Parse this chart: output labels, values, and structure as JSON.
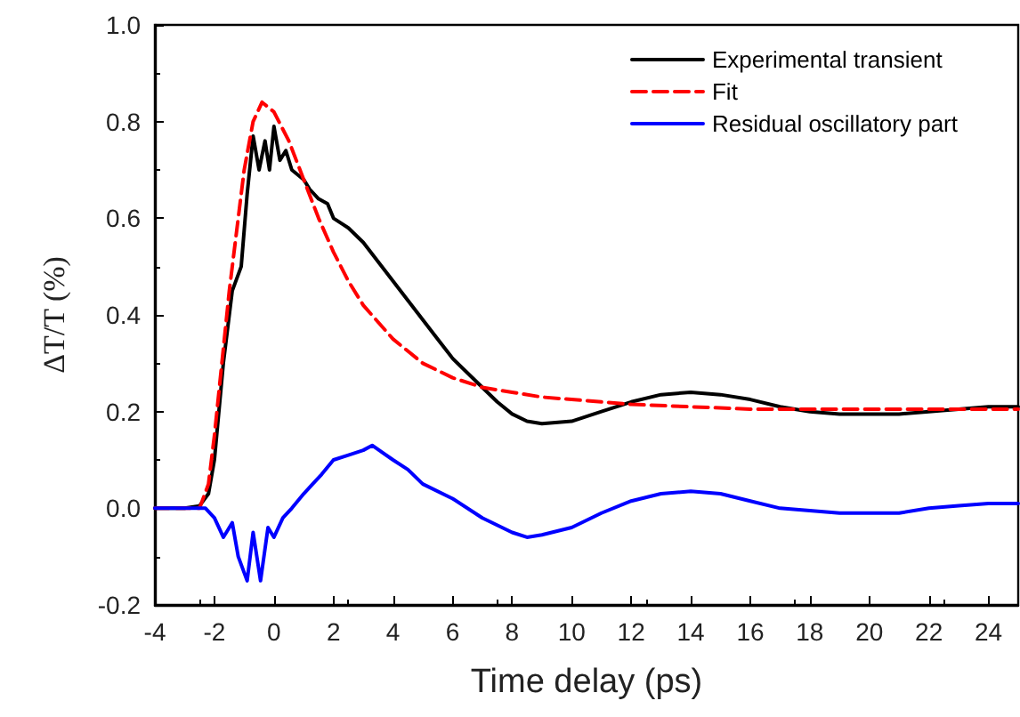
{
  "chart_data": {
    "type": "line",
    "xlabel": "Time delay (ps)",
    "ylabel": "ΔT/T (%)",
    "xlim": [
      -4,
      25
    ],
    "xticks": [
      -4,
      -2,
      0,
      2,
      4,
      6,
      8,
      10,
      12,
      14,
      16,
      18,
      20,
      22,
      24
    ],
    "ylim": [
      -0.2,
      1.0
    ],
    "yticks": [
      -0.2,
      {
        "value": 0,
        "label": "0.0"
      },
      0.2,
      0.4,
      0.6,
      0.8,
      {
        "value": 1,
        "label": "1.0"
      }
    ],
    "legend": "top right",
    "marker": "none",
    "series": [
      {
        "name": "Experimental transient",
        "color": "#000000",
        "line_style": "solid",
        "x": [
          -4,
          -3,
          -2.5,
          -2.2,
          -2,
          -1.7,
          -1.4,
          -1.1,
          -0.9,
          -0.7,
          -0.5,
          -0.3,
          -0.15,
          0,
          0.2,
          0.4,
          0.6,
          0.8,
          1,
          1.2,
          1.5,
          1.8,
          2,
          2.5,
          3,
          3.5,
          4,
          4.5,
          5,
          5.5,
          6,
          6.5,
          7,
          7.5,
          8,
          8.5,
          9,
          10,
          11,
          12,
          13,
          14,
          15,
          16,
          17,
          18,
          19,
          20,
          21,
          22,
          23,
          24,
          25
        ],
        "values": [
          0,
          0,
          0.005,
          0.03,
          0.1,
          0.3,
          0.45,
          0.5,
          0.65,
          0.77,
          0.7,
          0.76,
          0.7,
          0.79,
          0.72,
          0.74,
          0.7,
          0.69,
          0.68,
          0.66,
          0.64,
          0.63,
          0.6,
          0.58,
          0.55,
          0.51,
          0.47,
          0.43,
          0.39,
          0.35,
          0.31,
          0.28,
          0.25,
          0.22,
          0.195,
          0.18,
          0.175,
          0.18,
          0.2,
          0.22,
          0.235,
          0.24,
          0.235,
          0.225,
          0.21,
          0.2,
          0.195,
          0.195,
          0.195,
          0.2,
          0.205,
          0.21,
          0.21
        ]
      },
      {
        "name": "Fit",
        "color": "#ff0000",
        "line_style": "dashed",
        "x": [
          -4,
          -2.5,
          -2.2,
          -2,
          -1.5,
          -1,
          -0.7,
          -0.4,
          0,
          0.5,
          1,
          1.5,
          2,
          2.5,
          3,
          4,
          5,
          6,
          7,
          8,
          9,
          10,
          12,
          14,
          16,
          18,
          20,
          22,
          25
        ],
        "values": [
          0,
          0,
          0.05,
          0.15,
          0.45,
          0.7,
          0.8,
          0.84,
          0.82,
          0.76,
          0.68,
          0.6,
          0.53,
          0.47,
          0.42,
          0.35,
          0.3,
          0.27,
          0.25,
          0.24,
          0.23,
          0.225,
          0.215,
          0.21,
          0.205,
          0.205,
          0.205,
          0.205,
          0.205
        ]
      },
      {
        "name": "Residual oscillatory part",
        "color": "#0000ff",
        "line_style": "solid",
        "x": [
          -4,
          -2.3,
          -2,
          -1.7,
          -1.4,
          -1.2,
          -0.9,
          -0.7,
          -0.45,
          -0.2,
          0,
          0.3,
          0.6,
          1,
          1.3,
          1.6,
          2,
          2.5,
          3,
          3.3,
          4,
          4.5,
          5,
          6,
          7,
          8,
          8.5,
          9,
          10,
          11,
          12,
          13,
          14,
          15,
          16,
          17,
          18,
          19,
          20,
          21,
          22,
          23,
          24,
          25
        ],
        "values": [
          0,
          0,
          -0.02,
          -0.06,
          -0.03,
          -0.1,
          -0.15,
          -0.05,
          -0.15,
          -0.04,
          -0.06,
          -0.02,
          0,
          0.03,
          0.05,
          0.07,
          0.1,
          0.11,
          0.12,
          0.13,
          0.1,
          0.08,
          0.05,
          0.02,
          -0.02,
          -0.05,
          -0.06,
          -0.055,
          -0.04,
          -0.01,
          0.015,
          0.03,
          0.035,
          0.03,
          0.015,
          0,
          -0.005,
          -0.01,
          -0.01,
          -0.01,
          0,
          0.005,
          0.01,
          0.01
        ]
      }
    ]
  }
}
